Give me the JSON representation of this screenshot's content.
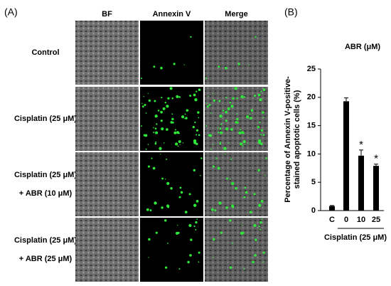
{
  "panel_a": {
    "label": "(A)",
    "columns": [
      "BF",
      "Annexin V",
      "Merge"
    ],
    "rows": [
      [
        "Control"
      ],
      [
        "Cisplatin (25 μM)"
      ],
      [
        "Cisplatin (25 μM)",
        "+ ABR (10 μM)"
      ],
      [
        "Cisplatin (25 μM)",
        "+ ABR (25 μM)"
      ]
    ]
  },
  "chart_data": {
    "type": "bar",
    "panel_label": "(B)",
    "title": "ABR (μM)",
    "y_label": [
      "Percentage of Annexin V-positive-",
      "stained apoptotic cells (%)"
    ],
    "group_label": "Cisplatin  (25 μM)",
    "categories": [
      "C",
      "0",
      "10",
      "25"
    ],
    "values": [
      0.8,
      19.3,
      9.7,
      7.9
    ],
    "errors": [
      0.1,
      0.6,
      1.0,
      0.3
    ],
    "significance": [
      null,
      null,
      "*",
      "*"
    ],
    "color": "#000000",
    "ylim": [
      0,
      25
    ],
    "yticks": [
      0,
      5,
      10,
      15,
      20,
      25
    ]
  }
}
